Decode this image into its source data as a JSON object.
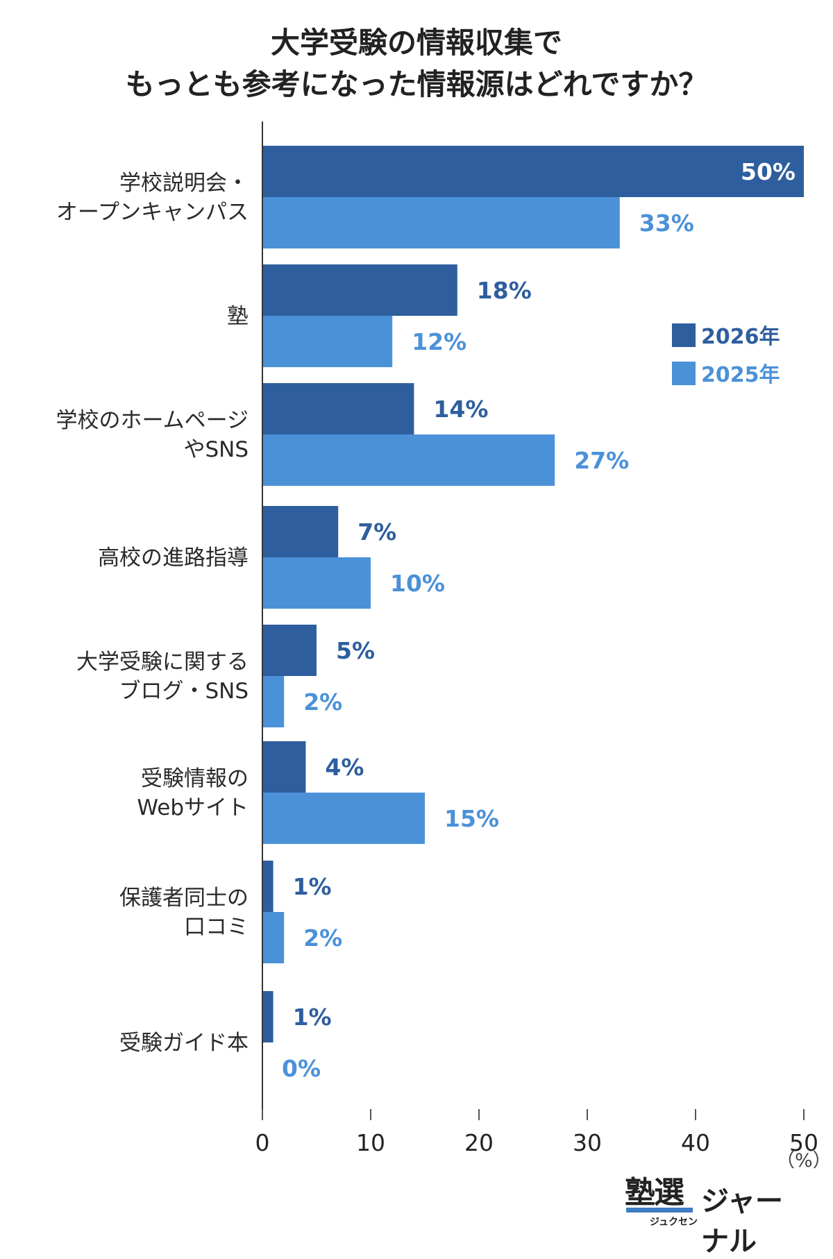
{
  "chart_data": {
    "type": "bar",
    "orientation": "horizontal",
    "title": "大学受験の情報収集で\nもっとも参考になった情報源はどれですか？",
    "categories": [
      "学校説明会・\nオープンキャンパス",
      "塾",
      "学校のホームページ\nやSNS",
      "高校の進路指導",
      "大学受験に関する\nブログ・SNS",
      "受験情報の\nWebサイト",
      "保護者同士の\n口コミ",
      "受験ガイド本"
    ],
    "series": [
      {
        "name": "2026年",
        "color": "#2E5E9E",
        "values": [
          50,
          18,
          14,
          7,
          5,
          4,
          1,
          1
        ]
      },
      {
        "name": "2025年",
        "color": "#4B91D8",
        "values": [
          33,
          12,
          27,
          10,
          2,
          15,
          2,
          0
        ]
      }
    ],
    "value_suffix": "%",
    "xlim": [
      0,
      50
    ],
    "xticks": [
      0,
      10,
      20,
      30,
      40,
      50
    ],
    "unit_label": "（%）",
    "legend_position": "right",
    "grid": false
  },
  "brand": {
    "logo_main": "塾選",
    "logo_kana": "ジュクセン",
    "logo_sub": "ジャーナル"
  }
}
